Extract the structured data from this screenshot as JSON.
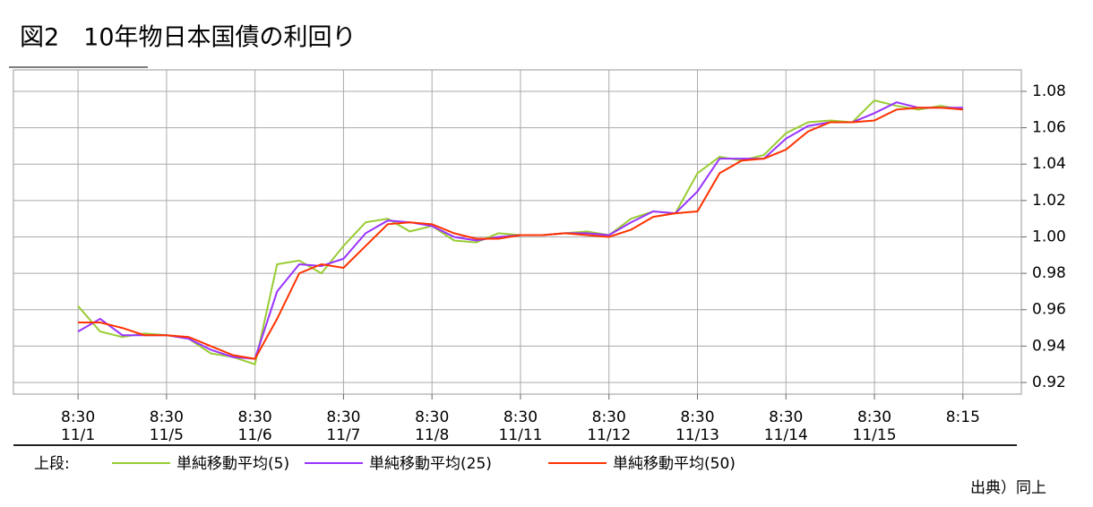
{
  "chart_data": {
    "type": "line",
    "title": "図2　10年物日本国債の利回り",
    "legend_prefix": "上段:",
    "source": "出典）同上",
    "x": [
      0,
      0.25,
      0.5,
      0.75,
      1,
      1.25,
      1.5,
      1.75,
      2,
      2.25,
      2.5,
      2.75,
      3,
      3.25,
      3.5,
      3.75,
      4,
      4.25,
      4.5,
      4.75,
      5,
      5.25,
      5.5,
      5.75,
      6,
      6.25,
      6.5,
      6.75,
      7,
      7.25,
      7.5,
      7.75,
      8,
      8.25,
      8.5,
      8.75,
      9,
      9.25,
      9.5,
      9.75,
      10
    ],
    "series": [
      {
        "name": "単純移動平均(5)",
        "color": "#99cc33",
        "values": [
          0.962,
          0.948,
          0.945,
          0.947,
          0.946,
          0.944,
          0.936,
          0.934,
          0.93,
          0.985,
          0.987,
          0.98,
          0.995,
          1.008,
          1.01,
          1.003,
          1.006,
          0.998,
          0.997,
          1.002,
          1.001,
          1.001,
          1.002,
          1.003,
          1.001,
          1.01,
          1.014,
          1.013,
          1.035,
          1.044,
          1.042,
          1.045,
          1.057,
          1.063,
          1.064,
          1.063,
          1.075,
          1.072,
          1.07,
          1.072,
          1.07
        ]
      },
      {
        "name": "単純移動平均(25)",
        "color": "#9933ff",
        "values": [
          0.948,
          0.955,
          0.946,
          0.946,
          0.946,
          0.944,
          0.938,
          0.934,
          0.933,
          0.97,
          0.985,
          0.984,
          0.988,
          1.002,
          1.009,
          1.008,
          1.006,
          1.0,
          0.998,
          1.0,
          1.001,
          1.001,
          1.002,
          1.002,
          1.001,
          1.008,
          1.014,
          1.013,
          1.025,
          1.043,
          1.043,
          1.043,
          1.054,
          1.061,
          1.063,
          1.063,
          1.068,
          1.074,
          1.071,
          1.071,
          1.071
        ]
      },
      {
        "name": "単純移動平均(50)",
        "color": "#ff3300",
        "values": [
          0.953,
          0.953,
          0.95,
          0.946,
          0.946,
          0.945,
          0.94,
          0.935,
          0.933,
          0.955,
          0.98,
          0.985,
          0.983,
          0.995,
          1.007,
          1.008,
          1.007,
          1.002,
          0.999,
          0.999,
          1.001,
          1.001,
          1.002,
          1.001,
          1.0,
          1.004,
          1.011,
          1.013,
          1.014,
          1.035,
          1.042,
          1.043,
          1.048,
          1.058,
          1.063,
          1.063,
          1.064,
          1.07,
          1.071,
          1.071,
          1.07
        ]
      }
    ],
    "xlim": [
      -0.73,
      10.66
    ],
    "xticks": [
      {
        "value": 0,
        "label": "8:30 11/1"
      },
      {
        "value": 1,
        "label": "8:30 11/5"
      },
      {
        "value": 2,
        "label": "8:30 11/6"
      },
      {
        "value": 3,
        "label": "8:30 11/7"
      },
      {
        "value": 4,
        "label": "8:30 11/8"
      },
      {
        "value": 5,
        "label": "8:30 11/11"
      },
      {
        "value": 6,
        "label": "8:30 11/12"
      },
      {
        "value": 7,
        "label": "8:30 11/13"
      },
      {
        "value": 8,
        "label": "8:30 11/14"
      },
      {
        "value": 9,
        "label": "8:30 11/15"
      },
      {
        "value": 10,
        "label": "8:15"
      }
    ],
    "ylim": [
      0.9136,
      1.0918
    ],
    "yticks": [
      0.92,
      0.94,
      0.96,
      0.98,
      {
        "value": 1,
        "label": "1.00"
      },
      1.02,
      1.04,
      1.06,
      1.08
    ],
    "grid": true
  }
}
